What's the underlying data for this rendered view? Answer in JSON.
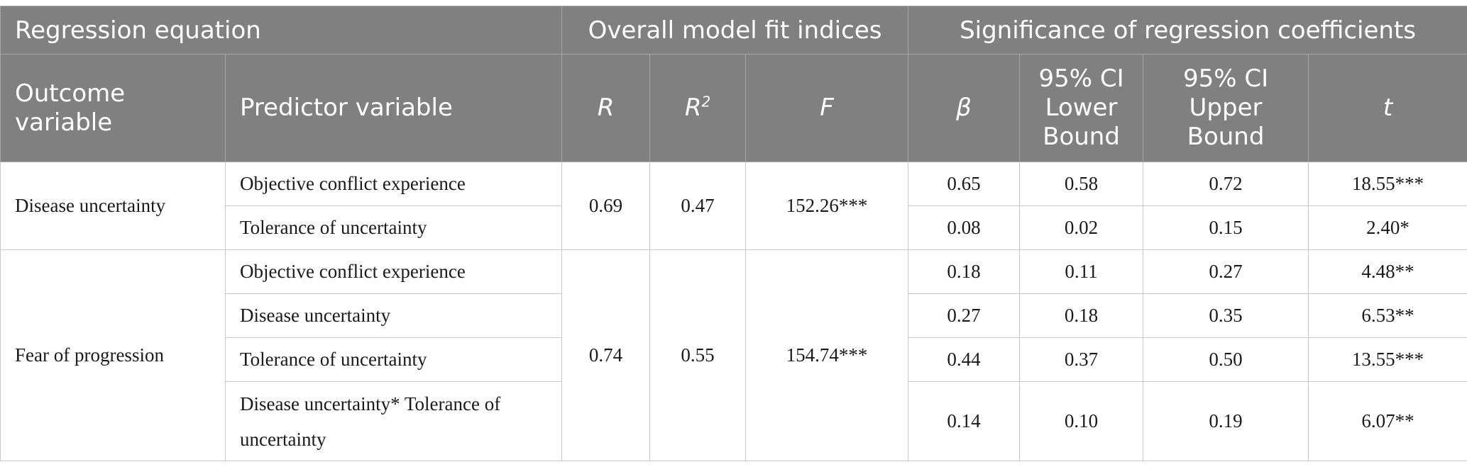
{
  "header": {
    "regression_equation": "Regression equation",
    "overall_fit": "Overall model fit indices",
    "significance": "Significance of regression coefficients",
    "outcome_variable": "Outcome variable",
    "predictor_variable": "Predictor variable",
    "r": "R",
    "r2_base": "R",
    "r2_sup": "2",
    "f": "F",
    "beta": "β",
    "ci_lower": [
      "95% CI",
      "Lower",
      "Bound"
    ],
    "ci_upper": [
      "95% CI",
      "Upper",
      "Bound"
    ],
    "t": "t"
  },
  "groups": [
    {
      "outcome": "Disease uncertainty",
      "R": "0.69",
      "R2": "0.47",
      "F": "152.26***",
      "rows": [
        {
          "predictor": "Objective conflict experience",
          "beta": "0.65",
          "lower": "0.58",
          "upper": "0.72",
          "t": "18.55***"
        },
        {
          "predictor": "Tolerance of uncertainty",
          "beta": "0.08",
          "lower": "0.02",
          "upper": "0.15",
          "t": "2.40*"
        }
      ]
    },
    {
      "outcome": "Fear of progression",
      "R": "0.74",
      "R2": "0.55",
      "F": "154.74***",
      "rows": [
        {
          "predictor": "Objective conflict experience",
          "beta": "0.18",
          "lower": "0.11",
          "upper": "0.27",
          "t": "4.48**"
        },
        {
          "predictor": "Disease uncertainty",
          "beta": "0.27",
          "lower": "0.18",
          "upper": "0.35",
          "t": "6.53**"
        },
        {
          "predictor": "Tolerance of uncertainty",
          "beta": "0.44",
          "lower": "0.37",
          "upper": "0.50",
          "t": "13.55***"
        },
        {
          "predictor_line1": "Disease uncertainty* Tolerance of",
          "predictor_line2": "uncertainty",
          "beta": "0.14",
          "lower": "0.10",
          "upper": "0.19",
          "t": "6.07**"
        }
      ]
    }
  ]
}
